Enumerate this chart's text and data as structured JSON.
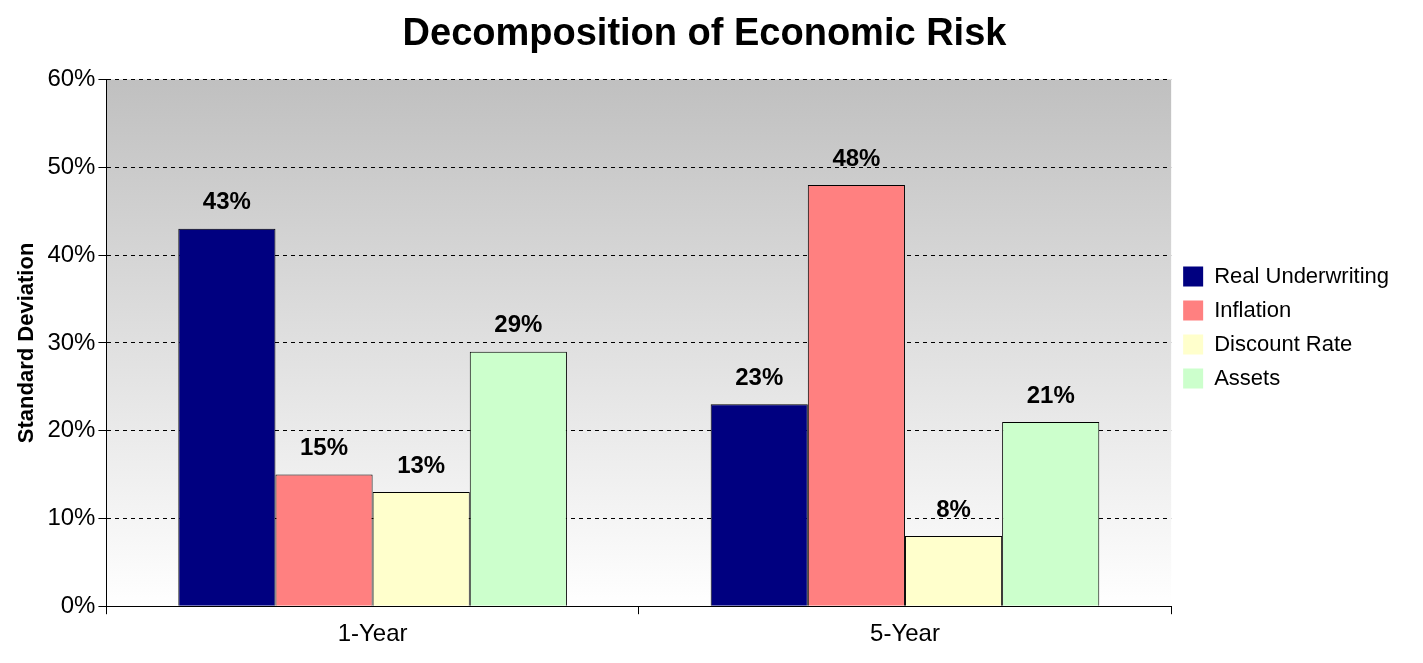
{
  "chart_data": {
    "type": "bar",
    "title": "Decomposition of Economic Risk",
    "ylabel": "Standard Deviation",
    "categories": [
      "1-Year",
      "5-Year"
    ],
    "series": [
      {
        "name": "Real Underwriting",
        "color": "#000080",
        "values": [
          43,
          23
        ],
        "value_labels": [
          "43%",
          "23%"
        ]
      },
      {
        "name": "Inflation",
        "color": "#ff8080",
        "values": [
          15,
          48
        ],
        "value_labels": [
          "15%",
          "48%"
        ]
      },
      {
        "name": "Discount Rate",
        "color": "#ffffcc",
        "values": [
          13,
          8
        ],
        "value_labels": [
          "13%",
          "8%"
        ]
      },
      {
        "name": "Assets",
        "color": "#ccffcc",
        "values": [
          29,
          21
        ],
        "value_labels": [
          "29%",
          "21%"
        ]
      }
    ],
    "ylim": [
      0,
      60
    ],
    "yticks": [
      {
        "value": 0,
        "label": "0%"
      },
      {
        "value": 10,
        "label": "10%"
      },
      {
        "value": 20,
        "label": "20%"
      },
      {
        "value": 30,
        "label": "30%"
      },
      {
        "value": 40,
        "label": "40%"
      },
      {
        "value": 50,
        "label": "50%"
      },
      {
        "value": 60,
        "label": "60%"
      }
    ],
    "grid": "y",
    "legend": "right"
  }
}
